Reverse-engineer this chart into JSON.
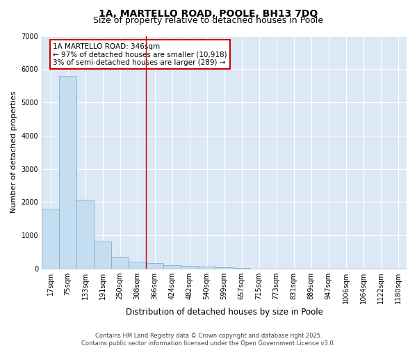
{
  "title1": "1A, MARTELLO ROAD, POOLE, BH13 7DQ",
  "title2": "Size of property relative to detached houses in Poole",
  "xlabel": "Distribution of detached houses by size in Poole",
  "ylabel": "Number of detached properties",
  "categories": [
    "17sqm",
    "75sqm",
    "133sqm",
    "191sqm",
    "250sqm",
    "308sqm",
    "366sqm",
    "424sqm",
    "482sqm",
    "540sqm",
    "599sqm",
    "657sqm",
    "715sqm",
    "773sqm",
    "831sqm",
    "889sqm",
    "947sqm",
    "1006sqm",
    "1064sqm",
    "1122sqm",
    "1180sqm"
  ],
  "values": [
    1780,
    5800,
    2080,
    820,
    360,
    210,
    170,
    100,
    75,
    55,
    35,
    20,
    12,
    5,
    3,
    2,
    1,
    1,
    0,
    0,
    0
  ],
  "bar_color": "#c5ddf0",
  "bar_edge_color": "#7ab0d4",
  "red_line_index": 6,
  "annotation_text": "1A MARTELLO ROAD: 346sqm\n← 97% of detached houses are smaller (10,918)\n3% of semi-detached houses are larger (289) →",
  "annotation_box_color": "#ffffff",
  "annotation_box_edge_color": "#cc0000",
  "ylim": [
    0,
    7000
  ],
  "yticks": [
    0,
    1000,
    2000,
    3000,
    4000,
    5000,
    6000,
    7000
  ],
  "plot_bg_color": "#dce8f5",
  "fig_bg_color": "#ffffff",
  "grid_color": "#ffffff",
  "footer1": "Contains HM Land Registry data © Crown copyright and database right 2025.",
  "footer2": "Contains public sector information licensed under the Open Government Licence v3.0.",
  "title_fontsize": 10,
  "subtitle_fontsize": 9,
  "tick_fontsize": 7,
  "ylabel_fontsize": 8,
  "xlabel_fontsize": 8.5,
  "annotation_fontsize": 7.5,
  "footer_fontsize": 6
}
